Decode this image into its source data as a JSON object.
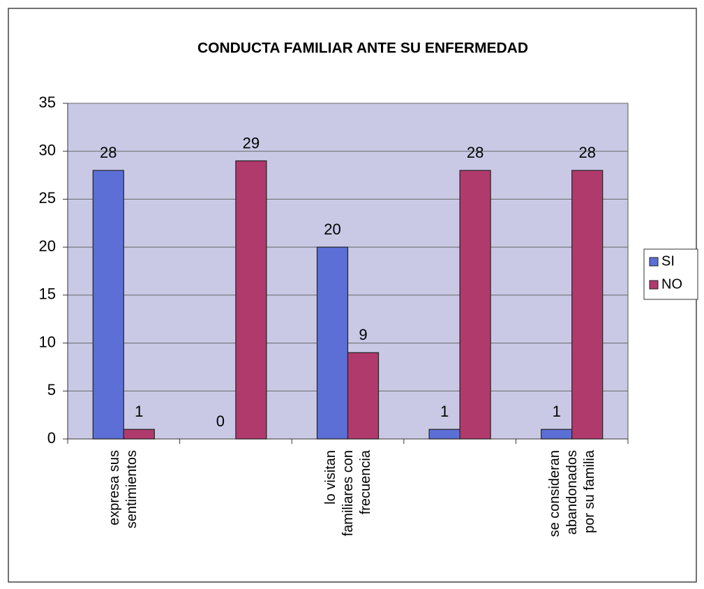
{
  "chart_data": {
    "type": "bar",
    "title": "CONDUCTA FAMILIAR ANTE SU ENFERMEDAD",
    "categories": [
      "expresa sus sentimientos",
      null,
      "lo visitan familiares con frecuencia",
      null,
      "se consideran abandonados por su familia"
    ],
    "series": [
      {
        "name": "SI",
        "color": "#5b6fd6",
        "values": [
          28,
          0,
          20,
          1,
          1
        ]
      },
      {
        "name": "NO",
        "color": "#b13a6c",
        "values": [
          1,
          29,
          9,
          28,
          28
        ]
      }
    ],
    "ylim": [
      0,
      35
    ],
    "yticks": [
      0,
      5,
      10,
      15,
      20,
      25,
      30,
      35
    ],
    "grid": true,
    "legend": "right"
  }
}
